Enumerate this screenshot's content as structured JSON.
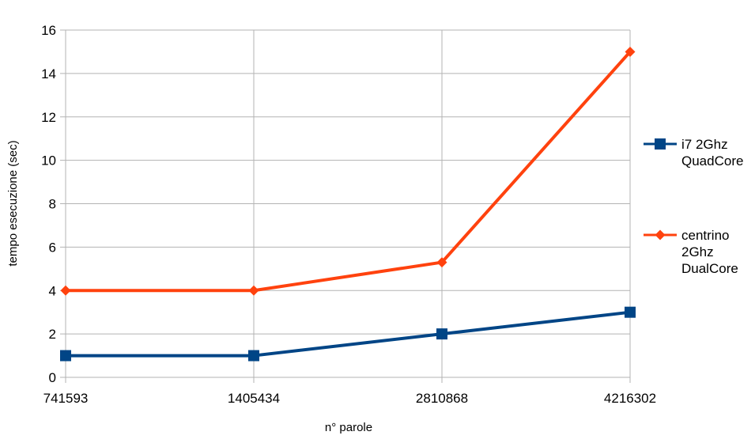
{
  "chart_data": {
    "type": "line",
    "categories": [
      "741593",
      "1405434",
      "2810868",
      "4216302"
    ],
    "series": [
      {
        "name": [
          "i7 2Ghz",
          "QuadCore"
        ],
        "values": [
          1,
          1,
          2,
          3
        ],
        "color": "#004586",
        "marker": "square"
      },
      {
        "name": [
          "centrino",
          "2Ghz",
          "DualCore"
        ],
        "values": [
          4,
          4,
          5.3,
          15
        ],
        "color": "#ff420e",
        "marker": "diamond"
      }
    ],
    "xlabel": "n° parole",
    "ylabel": "tempo esecuzione (sec)",
    "ylim": [
      0,
      16
    ],
    "yticks": [
      "0",
      "2",
      "4",
      "6",
      "8",
      "10",
      "12",
      "14",
      "16"
    ],
    "grid": true,
    "legend_position": "right"
  }
}
